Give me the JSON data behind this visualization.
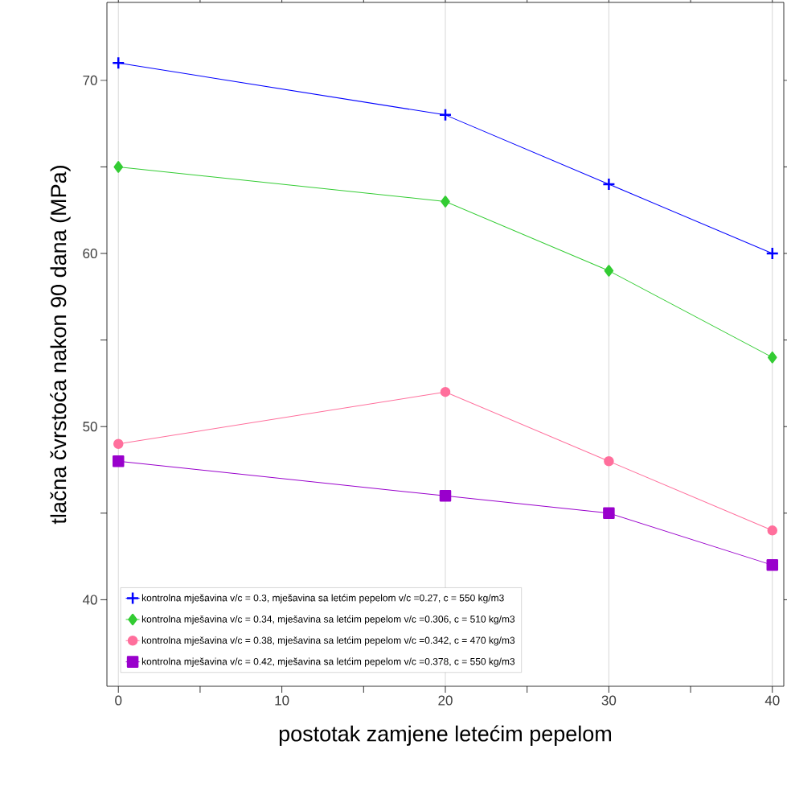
{
  "chart_data": {
    "type": "line",
    "xlabel": "postotak zamjene letećim pepelom",
    "ylabel": "tlačna čvrstoća nakon 90 dana (MPa)",
    "x": [
      0,
      20,
      30,
      40
    ],
    "series": [
      {
        "name": "kontrolna mješavina v/c = 0.3, mješavina sa letćim pepelom v/c =0.27, c = 550 kg/m3",
        "color": "#0000ff",
        "marker": "cross",
        "values": [
          71,
          68,
          64,
          60
        ]
      },
      {
        "name": "kontrolna mješavina v/c = 0.34, mješavina sa letćim pepelom v/c =0.306, c = 510 kg/m3",
        "color": "#33cc33",
        "marker": "diamond",
        "values": [
          65,
          63,
          59,
          54
        ]
      },
      {
        "name": "kontrolna mješavina v/c = 0.38, mješavina sa letćim pepelom v/c =0.342, c = 470 kg/m3",
        "color": "#ff6f9c",
        "marker": "circle",
        "values": [
          49,
          52,
          48,
          44
        ]
      },
      {
        "name": "kontrolna mješavina v/c = 0.42, mješavina sa letćim pepelom v/c =0.378, c = 550 kg/m3",
        "color": "#9900cc",
        "marker": "square",
        "values": [
          48,
          46,
          45,
          42
        ]
      }
    ],
    "xlim": [
      -0.7,
      40.7
    ],
    "ylim": [
      35,
      74.5
    ],
    "xticks": [
      0,
      {
        "value": 5,
        "label": null
      },
      10,
      {
        "value": 15,
        "label": null
      },
      20,
      {
        "value": 25,
        "label": null
      },
      30,
      {
        "value": 35,
        "label": null
      },
      40
    ],
    "yticks": [
      40,
      {
        "value": 45,
        "label": null
      },
      50,
      {
        "value": 55,
        "label": null
      },
      60,
      {
        "value": 65,
        "label": null
      },
      70
    ],
    "ref_lines": [
      {
        "axis": "x",
        "value": 0,
        "color": "#999999"
      },
      {
        "axis": "x",
        "value": 20,
        "color": "#999999"
      },
      {
        "axis": "x",
        "value": 30,
        "color": "#999999"
      },
      {
        "axis": "x",
        "value": 40,
        "color": "#999999"
      }
    ],
    "legend": "bottom left",
    "line_style": "solid"
  }
}
